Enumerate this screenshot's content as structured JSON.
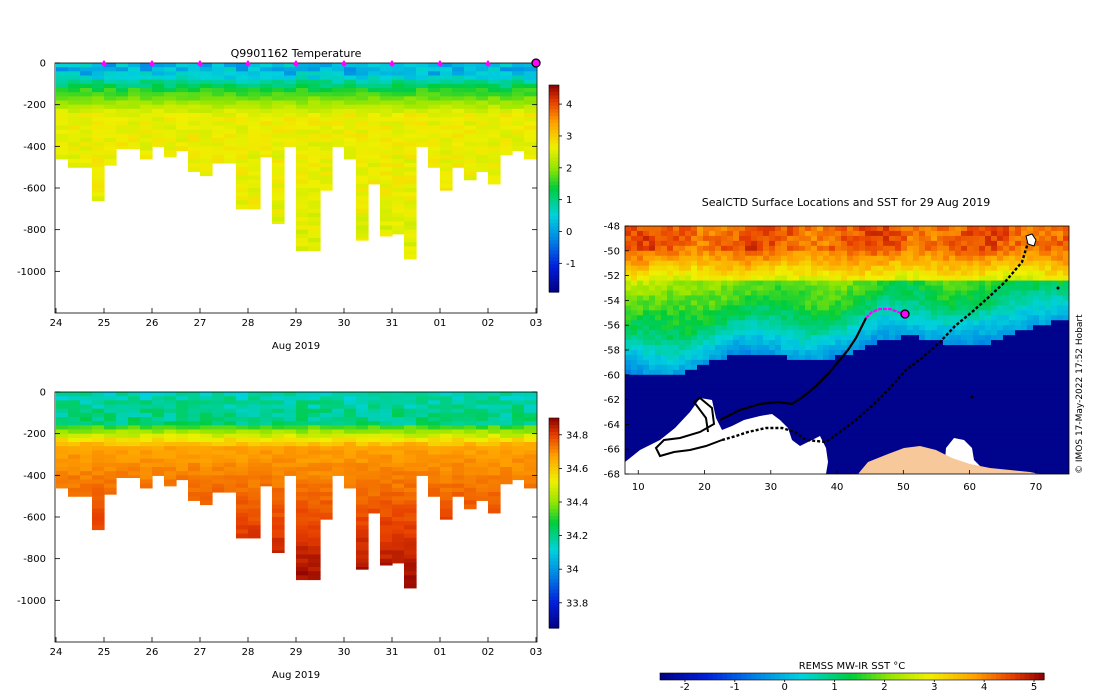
{
  "chart_data": [
    {
      "type": "heatmap",
      "title": "Q9901162  Temperature",
      "xlabel": "Aug 2019",
      "x_ticks": [
        "24",
        "25",
        "26",
        "27",
        "28",
        "29",
        "30",
        "31",
        "01",
        "02",
        "03"
      ],
      "y_ticks": [
        "0",
        "-200",
        "-400",
        "-600",
        "-800",
        "-1000"
      ],
      "ylim": [
        -1200,
        0
      ],
      "colorbar": {
        "ticks": [
          "4",
          "3",
          "2",
          "1",
          "0",
          "-1"
        ],
        "range": [
          -1.9,
          4.6
        ]
      },
      "surface_markers": [
        "25",
        "26",
        "27",
        "28",
        "29",
        "30",
        "31",
        "01",
        "02"
      ],
      "profiles": {
        "day_offset": [
          0.0,
          0.25,
          0.5,
          0.75,
          1.0,
          1.25,
          1.5,
          1.75,
          2.0,
          2.25,
          2.5,
          2.75,
          3.0,
          3.25,
          3.5,
          3.75,
          4.0,
          4.25,
          4.5,
          4.75,
          5.0,
          5.25,
          5.5,
          5.75,
          6.0,
          6.25,
          6.5,
          6.75,
          7.0,
          7.25,
          7.5,
          7.75,
          8.0,
          8.25,
          8.5,
          8.75,
          9.0,
          9.25,
          9.5,
          9.75
        ],
        "max_depth": [
          460,
          500,
          500,
          660,
          490,
          410,
          410,
          460,
          400,
          450,
          420,
          520,
          540,
          480,
          480,
          700,
          700,
          450,
          770,
          400,
          900,
          900,
          610,
          400,
          460,
          850,
          580,
          830,
          820,
          940,
          400,
          500,
          610,
          500,
          560,
          520,
          580,
          440,
          420,
          460
        ]
      }
    },
    {
      "type": "heatmap",
      "title": "",
      "xlabel": "Aug 2019",
      "x_ticks": [
        "24",
        "25",
        "26",
        "27",
        "28",
        "29",
        "30",
        "31",
        "01",
        "02",
        "03"
      ],
      "y_ticks": [
        "0",
        "-200",
        "-400",
        "-600",
        "-800",
        "-1000"
      ],
      "ylim": [
        -1200,
        0
      ],
      "colorbar": {
        "ticks": [
          "34.8",
          "34.6",
          "34.4",
          "34.2",
          "34",
          "33.8"
        ],
        "range": [
          33.65,
          34.9
        ]
      }
    },
    {
      "type": "heatmap",
      "title": "SealCTD Surface Locations and SST for 29 Aug 2019",
      "x_ticks": [
        "10",
        "20",
        "30",
        "40",
        "50",
        "60",
        "70"
      ],
      "y_ticks": [
        "-48",
        "-50",
        "-52",
        "-54",
        "-56",
        "-58",
        "-60",
        "-62",
        "-64",
        "-66",
        "-68"
      ],
      "xlim": [
        8,
        75
      ],
      "ylim": [
        -68,
        -48
      ],
      "colorbar": {
        "label": "REMSS MW-IR SST °C",
        "ticks": [
          "-2",
          "-1",
          "0",
          "1",
          "2",
          "3",
          "4",
          "5"
        ],
        "range": [
          -2.5,
          5.2
        ]
      },
      "current_position": {
        "lon": 50.5,
        "lat": -55.2
      },
      "recent_track": [
        {
          "lon": 45.5,
          "lat": -55.0
        },
        {
          "lon": 47.5,
          "lat": -54.6
        },
        {
          "lon": 49.5,
          "lat": -54.9
        }
      ]
    }
  ],
  "credit": "© IMOS 17-May-2022 17:52 Hobart",
  "colors": {
    "land_ice": "#ffffff",
    "antarctic_land": "#f6c89a",
    "marker": "#ff00ff",
    "deep_cold": "#000c8e"
  }
}
